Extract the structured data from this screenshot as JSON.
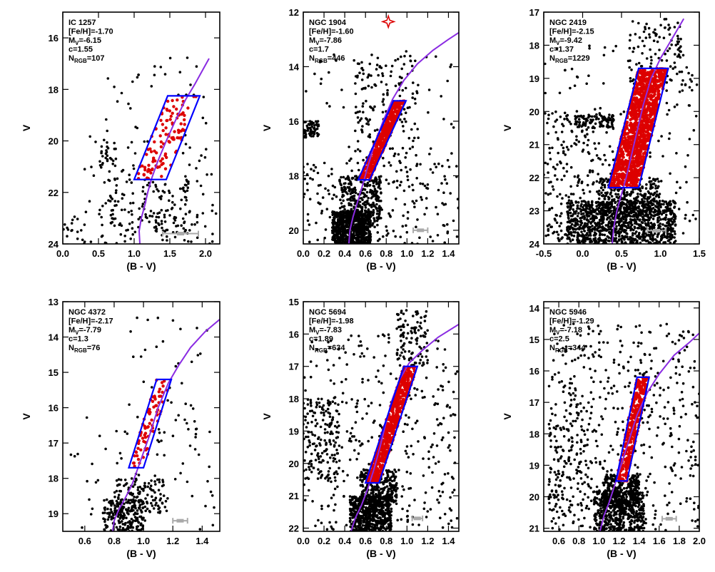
{
  "colors": {
    "isochrone": "#8a2be2",
    "box": "#0000ff",
    "rgb_star": "#dd0000",
    "field_star": "#000000",
    "error_bar": "#aaaaaa",
    "marker": "#dd0000"
  },
  "chart_data": [
    {
      "type": "scatter",
      "cluster": "IC 1257",
      "feh": "[Fe/H]=-1.70",
      "mv_prefix": "M",
      "mv_sub": "V",
      "mv_value": "=-6.15",
      "c_text": "c=1.55",
      "n_prefix": "N",
      "n_sub": "RGB",
      "n_value": "=107",
      "xlabel": "(B - V)",
      "ylabel": "V",
      "xlim": [
        0.0,
        2.2
      ],
      "ylim": [
        24,
        15
      ],
      "xticks": [
        0.0,
        0.5,
        1.0,
        1.5,
        2.0
      ],
      "xtick_labels": [
        "0.0",
        "0.5",
        "1.0",
        "1.5",
        "2.0"
      ],
      "yticks": [
        16,
        18,
        20,
        22,
        24
      ],
      "ytick_labels": [
        "16",
        "18",
        "20",
        "22",
        "24"
      ],
      "box": [
        [
          1.0,
          21.5
        ],
        [
          1.45,
          21.5
        ],
        [
          1.92,
          18.25
        ],
        [
          1.47,
          18.25
        ]
      ],
      "isochrone": [
        [
          1.08,
          24.0
        ],
        [
          1.07,
          23.5
        ],
        [
          1.1,
          23.0
        ],
        [
          1.15,
          22.5
        ],
        [
          1.19,
          22.0
        ],
        [
          1.24,
          21.5
        ],
        [
          1.33,
          20.8
        ],
        [
          1.45,
          20.0
        ],
        [
          1.58,
          19.2
        ],
        [
          1.72,
          18.4
        ],
        [
          1.85,
          17.8
        ],
        [
          1.97,
          17.2
        ],
        [
          2.05,
          16.8
        ]
      ],
      "rgb_count": 107,
      "field_count": 330,
      "field_regions": [
        {
          "n": 90,
          "x": [
            0.0,
            2.1
          ],
          "y": [
            22.6,
            24.0
          ]
        },
        {
          "n": 90,
          "x": [
            0.6,
            1.8
          ],
          "y": [
            21.5,
            23.5
          ]
        },
        {
          "n": 25,
          "x": [
            0.5,
            0.75
          ],
          "y": [
            20.0,
            21.0
          ]
        },
        {
          "n": 70,
          "x": [
            0.6,
            2.1
          ],
          "y": [
            16.5,
            22.5
          ]
        },
        {
          "n": 55,
          "x": [
            0.3,
            2.15
          ],
          "y": [
            19.5,
            24.0
          ]
        }
      ],
      "err_bar": {
        "x": 1.65,
        "y": 23.6,
        "halfwidth": 0.25
      },
      "marker": null
    },
    {
      "type": "scatter",
      "cluster": "NGC 1904",
      "feh": "[Fe/H]=-1.60",
      "mv_prefix": "M",
      "mv_sub": "V",
      "mv_value": "=-7.86",
      "c_text": "c=1.7",
      "n_prefix": "N",
      "n_sub": "RGB",
      "n_value": "=446",
      "xlabel": "(B - V)",
      "ylabel": "V",
      "xlim": [
        0.0,
        1.5
      ],
      "ylim": [
        20.5,
        12.0
      ],
      "xticks": [
        0.0,
        0.2,
        0.4,
        0.6,
        0.8,
        1.0,
        1.2,
        1.4
      ],
      "xtick_labels": [
        "0.0",
        "0.2",
        "0.4",
        "0.6",
        "0.8",
        "1.0",
        "1.2",
        "1.4"
      ],
      "yticks": [
        12,
        14,
        16,
        18,
        20
      ],
      "ytick_labels": [
        "12",
        "14",
        "16",
        "18",
        "20"
      ],
      "box": [
        [
          0.53,
          18.15
        ],
        [
          0.64,
          18.15
        ],
        [
          0.99,
          15.25
        ],
        [
          0.87,
          15.25
        ]
      ],
      "isochrone": [
        [
          0.44,
          20.5
        ],
        [
          0.45,
          20.0
        ],
        [
          0.48,
          19.5
        ],
        [
          0.52,
          19.0
        ],
        [
          0.56,
          18.5
        ],
        [
          0.62,
          17.7
        ],
        [
          0.69,
          16.8
        ],
        [
          0.77,
          16.0
        ],
        [
          0.86,
          15.2
        ],
        [
          0.97,
          14.5
        ],
        [
          1.1,
          13.9
        ],
        [
          1.25,
          13.4
        ],
        [
          1.4,
          13.0
        ],
        [
          1.5,
          12.75
        ]
      ],
      "rgb_count": 446,
      "field_count": 1590,
      "field_regions": [
        {
          "n": 800,
          "x": [
            0.28,
            0.65
          ],
          "y": [
            19.3,
            20.5
          ]
        },
        {
          "n": 300,
          "x": [
            0.35,
            0.75
          ],
          "y": [
            18.0,
            19.8
          ]
        },
        {
          "n": 60,
          "x": [
            0.0,
            0.15
          ],
          "y": [
            16.0,
            16.6
          ]
        },
        {
          "n": 200,
          "x": [
            0.0,
            1.5
          ],
          "y": [
            17.5,
            20.5
          ]
        },
        {
          "n": 150,
          "x": [
            0.5,
            1.1
          ],
          "y": [
            13.5,
            17.5
          ]
        },
        {
          "n": 80,
          "x": [
            0.0,
            1.5
          ],
          "y": [
            13.0,
            20.5
          ]
        }
      ],
      "err_bar": {
        "x": 1.13,
        "y": 20.0,
        "halfwidth": 0.07
      },
      "marker": {
        "x": 0.82,
        "y": 12.35
      }
    },
    {
      "type": "scatter",
      "cluster": "NGC 2419",
      "feh": "[Fe/H]=-2.15",
      "mv_prefix": "M",
      "mv_sub": "V",
      "mv_value": "=-9.42",
      "c_text": "c=1.37",
      "n_prefix": "N",
      "n_sub": "RGB",
      "n_value": "=1229",
      "xlabel": "(B - V)",
      "ylabel": "V",
      "xlim": [
        -0.5,
        1.5
      ],
      "ylim": [
        24,
        17
      ],
      "xticks": [
        -0.5,
        0.0,
        0.5,
        1.0,
        1.5
      ],
      "xtick_labels": [
        "-0.5",
        "0.0",
        "0.5",
        "1.0",
        "1.5"
      ],
      "yticks": [
        17,
        18,
        19,
        20,
        21,
        22,
        23,
        24
      ],
      "ytick_labels": [
        "17",
        "18",
        "19",
        "20",
        "21",
        "22",
        "23",
        "24"
      ],
      "box": [
        [
          0.33,
          22.3
        ],
        [
          0.72,
          22.3
        ],
        [
          1.1,
          18.7
        ],
        [
          0.72,
          18.7
        ]
      ],
      "isochrone": [
        [
          0.38,
          24.0
        ],
        [
          0.4,
          23.5
        ],
        [
          0.44,
          23.0
        ],
        [
          0.5,
          22.5
        ],
        [
          0.56,
          22.0
        ],
        [
          0.63,
          21.3
        ],
        [
          0.7,
          20.6
        ],
        [
          0.78,
          19.8
        ],
        [
          0.88,
          19.0
        ],
        [
          1.0,
          18.4
        ],
        [
          1.15,
          17.8
        ],
        [
          1.3,
          17.2
        ]
      ],
      "rgb_count": 1229,
      "field_count": 1930,
      "field_regions": [
        {
          "n": 1000,
          "x": [
            -0.2,
            1.2
          ],
          "y": [
            22.7,
            24.0
          ]
        },
        {
          "n": 350,
          "x": [
            0.2,
            1.0
          ],
          "y": [
            22.0,
            23.2
          ]
        },
        {
          "n": 180,
          "x": [
            -0.45,
            0.3
          ],
          "y": [
            20.0,
            24.0
          ]
        },
        {
          "n": 80,
          "x": [
            -0.1,
            0.4
          ],
          "y": [
            20.1,
            20.5
          ]
        },
        {
          "n": 120,
          "x": [
            0.6,
            1.3
          ],
          "y": [
            17.2,
            19.5
          ]
        },
        {
          "n": 200,
          "x": [
            -0.5,
            1.5
          ],
          "y": [
            18.0,
            24.0
          ]
        }
      ],
      "err_bar": {
        "x": 0.95,
        "y": 23.6,
        "halfwidth": 0.12
      },
      "marker": null
    },
    {
      "type": "scatter",
      "cluster": "NGC 4372",
      "feh": "[Fe/H]=-2.17",
      "mv_prefix": "M",
      "mv_sub": "V",
      "mv_value": "=-7.79",
      "c_text": "c=1.3",
      "n_prefix": "N",
      "n_sub": "RGB",
      "n_value": "=76",
      "xlabel": "(B - V)",
      "ylabel": "V",
      "xlim": [
        0.45,
        1.52
      ],
      "ylim": [
        19.5,
        13.0
      ],
      "xticks": [
        0.6,
        0.8,
        1.0,
        1.2,
        1.4
      ],
      "xtick_labels": [
        "0.6",
        "0.8",
        "1.0",
        "1.2",
        "1.4"
      ],
      "yticks": [
        13,
        14,
        15,
        16,
        17,
        18,
        19
      ],
      "ytick_labels": [
        "13",
        "14",
        "15",
        "16",
        "17",
        "18",
        "19"
      ],
      "box": [
        [
          0.9,
          17.7
        ],
        [
          1.0,
          17.7
        ],
        [
          1.19,
          15.2
        ],
        [
          1.09,
          15.2
        ]
      ],
      "isochrone": [
        [
          0.79,
          19.5
        ],
        [
          0.8,
          19.2
        ],
        [
          0.83,
          18.9
        ],
        [
          0.87,
          18.6
        ],
        [
          0.92,
          18.2
        ],
        [
          0.98,
          17.5
        ],
        [
          1.04,
          16.8
        ],
        [
          1.1,
          16.0
        ],
        [
          1.17,
          15.3
        ],
        [
          1.24,
          14.8
        ],
        [
          1.32,
          14.3
        ],
        [
          1.42,
          13.85
        ],
        [
          1.52,
          13.5
        ]
      ],
      "rgb_count": 76,
      "field_count": 430,
      "field_regions": [
        {
          "n": 200,
          "x": [
            0.72,
            1.0
          ],
          "y": [
            18.6,
            19.5
          ]
        },
        {
          "n": 120,
          "x": [
            0.8,
            1.15
          ],
          "y": [
            18.0,
            19.0
          ]
        },
        {
          "n": 70,
          "x": [
            0.5,
            1.5
          ],
          "y": [
            16.0,
            19.5
          ]
        },
        {
          "n": 40,
          "x": [
            0.9,
            1.45
          ],
          "y": [
            13.3,
            17.0
          ]
        }
      ],
      "err_bar": {
        "x": 1.25,
        "y": 19.2,
        "halfwidth": 0.05
      },
      "marker": null
    },
    {
      "type": "scatter",
      "cluster": "NGC 5694",
      "feh": "[Fe/H]=-1.98",
      "mv_prefix": "M",
      "mv_sub": "V",
      "mv_value": "=-7.83",
      "c_text": "c=1.89",
      "n_prefix": "N",
      "n_sub": "RGB",
      "n_value": "=634",
      "xlabel": "(B - V)",
      "ylabel": "V",
      "xlim": [
        0.0,
        1.5
      ],
      "ylim": [
        22.1,
        15.0
      ],
      "xticks": [
        0.0,
        0.2,
        0.4,
        0.6,
        0.8,
        1.0,
        1.2,
        1.4
      ],
      "xtick_labels": [
        "0.0",
        "0.2",
        "0.4",
        "0.6",
        "0.8",
        "1.0",
        "1.2",
        "1.4"
      ],
      "yticks": [
        15,
        16,
        17,
        18,
        19,
        20,
        21,
        22
      ],
      "ytick_labels": [
        "15",
        "16",
        "17",
        "18",
        "19",
        "20",
        "21",
        "22"
      ],
      "box": [
        [
          0.6,
          20.6
        ],
        [
          0.73,
          20.6
        ],
        [
          1.1,
          17.0
        ],
        [
          0.97,
          17.0
        ]
      ],
      "isochrone": [
        [
          0.46,
          22.1
        ],
        [
          0.5,
          21.7
        ],
        [
          0.56,
          21.3
        ],
        [
          0.62,
          20.8
        ],
        [
          0.68,
          20.2
        ],
        [
          0.74,
          19.5
        ],
        [
          0.8,
          18.7
        ],
        [
          0.86,
          18.0
        ],
        [
          0.93,
          17.4
        ],
        [
          1.02,
          16.9
        ],
        [
          1.15,
          16.5
        ],
        [
          1.3,
          16.1
        ],
        [
          1.5,
          15.7
        ]
      ],
      "rgb_count": 634,
      "field_count": 1500,
      "field_regions": [
        {
          "n": 600,
          "x": [
            0.45,
            0.85
          ],
          "y": [
            21.0,
            22.1
          ]
        },
        {
          "n": 300,
          "x": [
            0.55,
            0.9
          ],
          "y": [
            20.2,
            21.3
          ]
        },
        {
          "n": 150,
          "x": [
            0.0,
            0.35
          ],
          "y": [
            18.0,
            20.5
          ]
        },
        {
          "n": 100,
          "x": [
            0.9,
            1.2
          ],
          "y": [
            15.2,
            17.0
          ]
        },
        {
          "n": 350,
          "x": [
            0.0,
            1.5
          ],
          "y": [
            16.0,
            22.1
          ]
        }
      ],
      "err_bar": {
        "x": 1.1,
        "y": 21.7,
        "halfwidth": 0.05
      },
      "marker": null
    },
    {
      "type": "scatter",
      "cluster": "NGC 5946",
      "feh": "[Fe/H]=-1.29",
      "mv_prefix": "M",
      "mv_sub": "V",
      "mv_value": "=-7.18",
      "c_text": "c=2.5",
      "n_prefix": "N",
      "n_sub": "RGB",
      "n_value": "=344",
      "xlabel": "(B - V)",
      "ylabel": "V",
      "xlim": [
        0.45,
        2.0
      ],
      "ylim": [
        21.1,
        13.8
      ],
      "xticks": [
        0.6,
        0.8,
        1.0,
        1.2,
        1.4,
        1.6,
        1.8,
        2.0
      ],
      "xtick_labels": [
        "0.6",
        "0.8",
        "1.0",
        "1.2",
        "1.4",
        "1.6",
        "1.8",
        "2.0"
      ],
      "yticks": [
        14,
        15,
        16,
        17,
        18,
        19,
        20,
        21
      ],
      "ytick_labels": [
        "14",
        "15",
        "16",
        "17",
        "18",
        "19",
        "20",
        "21"
      ],
      "box": [
        [
          1.17,
          19.5
        ],
        [
          1.28,
          19.5
        ],
        [
          1.5,
          16.2
        ],
        [
          1.38,
          16.2
        ]
      ],
      "isochrone": [
        [
          1.01,
          21.1
        ],
        [
          1.05,
          20.6
        ],
        [
          1.1,
          20.2
        ],
        [
          1.15,
          19.7
        ],
        [
          1.22,
          19.0
        ],
        [
          1.3,
          18.2
        ],
        [
          1.38,
          17.4
        ],
        [
          1.48,
          16.7
        ],
        [
          1.6,
          16.1
        ],
        [
          1.75,
          15.5
        ],
        [
          1.9,
          15.1
        ],
        [
          2.0,
          14.8
        ]
      ],
      "rgb_count": 344,
      "field_count": 1430,
      "field_regions": [
        {
          "n": 500,
          "x": [
            0.95,
            1.45
          ],
          "y": [
            19.8,
            21.1
          ]
        },
        {
          "n": 300,
          "x": [
            1.05,
            1.4
          ],
          "y": [
            19.3,
            20.3
          ]
        },
        {
          "n": 130,
          "x": [
            0.5,
            0.9
          ],
          "y": [
            17.0,
            20.5
          ]
        },
        {
          "n": 500,
          "x": [
            0.5,
            2.0
          ],
          "y": [
            14.5,
            21.1
          ]
        }
      ],
      "err_bar": {
        "x": 1.7,
        "y": 20.7,
        "halfwidth": 0.07
      },
      "marker": null
    }
  ]
}
